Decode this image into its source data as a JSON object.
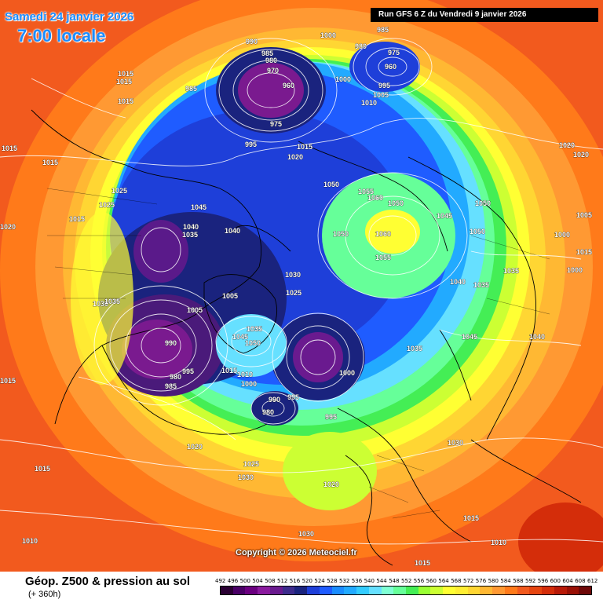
{
  "header": {
    "date": "Samedi 24 janvier 2026",
    "local_time": "7:00 locale",
    "run_info": "Run GFS 6 Z du Vendredi 9 janvier 2026"
  },
  "map": {
    "copyright": "Copyright © 2026 Meteociel.fr",
    "pressure_labels": [
      "1000",
      "985",
      "990",
      "980",
      "985",
      "970",
      "960",
      "975",
      "960",
      "980",
      "1000",
      "995",
      "1005",
      "1010",
      "985",
      "975",
      "995",
      "1015",
      "1020",
      "1015",
      "1015",
      "1015",
      "1015",
      "1015",
      "1025",
      "1025",
      "1015",
      "1020",
      "1045",
      "1040",
      "1035",
      "1040",
      "1030",
      "1035",
      "1005",
      "1005",
      "990",
      "995",
      "985",
      "980",
      "1035",
      "1045",
      "1050",
      "1015",
      "1010",
      "1000",
      "990",
      "980",
      "995",
      "1000",
      "995",
      "1050",
      "1055",
      "1060",
      "1050",
      "1045",
      "1050",
      "1060",
      "1055",
      "1050",
      "1050",
      "1030",
      "1025",
      "1035",
      "1040",
      "1035",
      "1035",
      "1045",
      "1040",
      "1030",
      "1020",
      "1025",
      "1030",
      "1020",
      "1015",
      "1015",
      "1010",
      "1030",
      "1010",
      "1015",
      "1020",
      "1020",
      "1005",
      "1000",
      "1015",
      "1015",
      "1000"
    ],
    "colors": {
      "ocean_background": "#f25a1e",
      "coastline": "#000000",
      "isobar": "#ffffff"
    }
  },
  "footer": {
    "field_title": "Géop. Z500 & pression au sol",
    "lead_time": "(+ 360h)",
    "scale_values": [
      "492",
      "496",
      "500",
      "504",
      "508",
      "512",
      "516",
      "520",
      "524",
      "528",
      "532",
      "536",
      "540",
      "544",
      "548",
      "552",
      "556",
      "560",
      "564",
      "568",
      "572",
      "576",
      "580",
      "584",
      "588",
      "592",
      "596",
      "600",
      "604",
      "608",
      "612"
    ],
    "scale_colors": [
      "#2a0033",
      "#4a0066",
      "#6b0080",
      "#8a1a9e",
      "#6a1a8f",
      "#3d2b8c",
      "#1a237e",
      "#1e3fd9",
      "#1f5cff",
      "#1a8cff",
      "#22aaff",
      "#33ccff",
      "#66e0ff",
      "#7fffd4",
      "#66ff99",
      "#44ee55",
      "#99ff33",
      "#ccff33",
      "#ffff33",
      "#ffee33",
      "#ffd633",
      "#ffb833",
      "#ff9933",
      "#ff7a1a",
      "#f25a1e",
      "#e64510",
      "#d42d0a",
      "#b81a08",
      "#991005",
      "#6e0808"
    ]
  }
}
